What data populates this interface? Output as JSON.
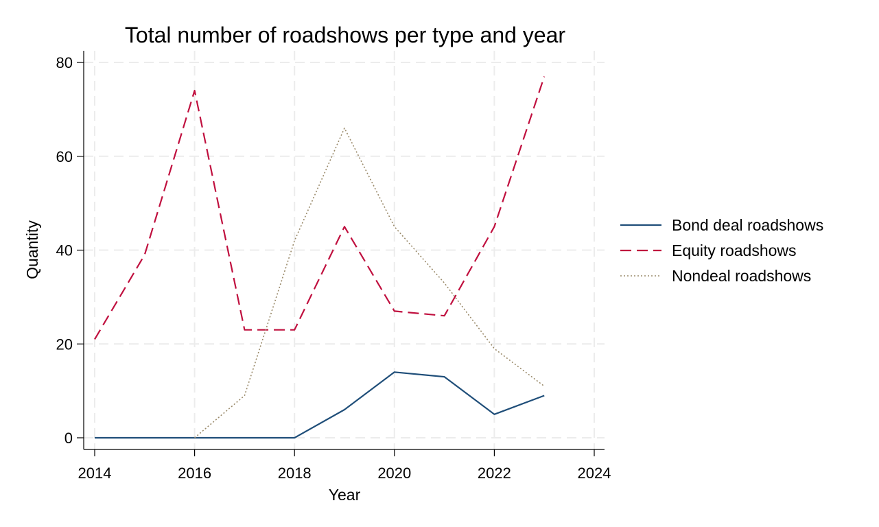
{
  "chart_data": {
    "type": "line",
    "title": "Total number of roadshows per type and year",
    "xlabel": "Year",
    "ylabel": "Quantity",
    "xlim": [
      2014,
      2024
    ],
    "ylim": [
      0,
      80
    ],
    "x_ticks": [
      2014,
      2016,
      2018,
      2020,
      2022,
      2024
    ],
    "y_ticks": [
      0,
      20,
      40,
      60,
      80
    ],
    "grid": true,
    "legend_position": "right",
    "series": [
      {
        "name": "Bond deal roadshows",
        "color": "#1f4e79",
        "style": "solid",
        "x": [
          2014,
          2015,
          2016,
          2017,
          2018,
          2019,
          2020,
          2021,
          2022,
          2023
        ],
        "values": [
          0,
          0,
          0,
          0,
          0,
          6,
          14,
          13,
          5,
          9
        ]
      },
      {
        "name": "Equity roadshows",
        "color": "#c0103f",
        "style": "dashed",
        "x": [
          2014,
          2015,
          2016,
          2017,
          2018,
          2019,
          2020,
          2021,
          2022,
          2023
        ],
        "values": [
          21,
          39,
          74,
          23,
          23,
          45,
          27,
          26,
          45,
          77
        ]
      },
      {
        "name": "Nondeal roadshows",
        "color": "#9a8a6a",
        "style": "dotted",
        "x": [
          2016,
          2017,
          2018,
          2019,
          2020,
          2021,
          2022,
          2023
        ],
        "values": [
          0,
          9,
          42,
          66,
          45,
          33,
          19,
          11
        ]
      }
    ]
  }
}
